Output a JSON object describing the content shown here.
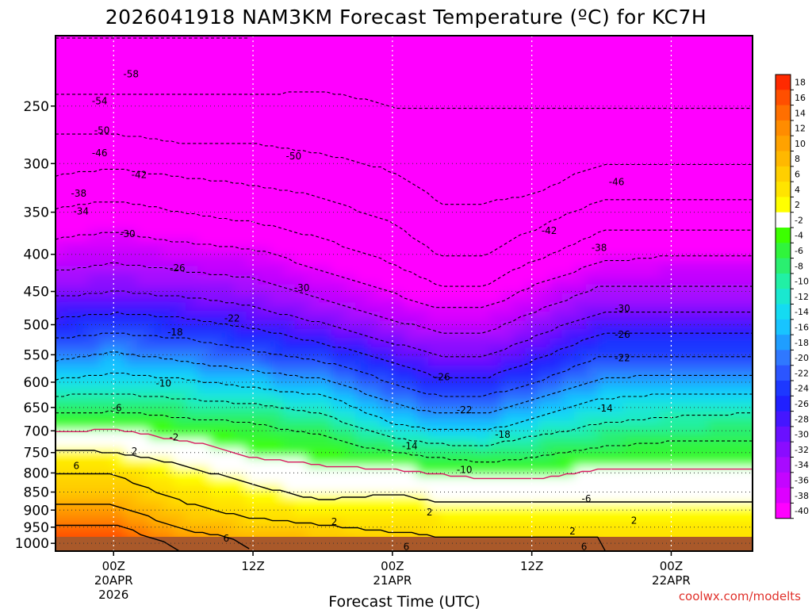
{
  "chart_data": {
    "type": "heatmap",
    "title": "2026041918 NAM3KM Forecast Temperature (ºC) for KC7H",
    "xlabel": "Forecast Time (UTC)",
    "ylabel": "",
    "credit": "coolwx.com/modelts",
    "y_axis": {
      "scale": "pressure",
      "range_hpa": [
        200,
        1025
      ],
      "ticks": [
        "250",
        "300",
        "350",
        "400",
        "450",
        "500",
        "550",
        "600",
        "650",
        "700",
        "750",
        "800",
        "850",
        "900",
        "950",
        "1000"
      ],
      "tick_values": [
        250,
        300,
        350,
        400,
        450,
        500,
        550,
        600,
        650,
        700,
        750,
        800,
        850,
        900,
        950,
        1000
      ]
    },
    "x_axis": {
      "range_hours": [
        -5,
        55
      ],
      "ticks": [
        {
          "hour": 0,
          "lines": [
            "00Z",
            "20APR",
            "2026"
          ]
        },
        {
          "hour": 12,
          "lines": [
            "12Z"
          ]
        },
        {
          "hour": 24,
          "lines": [
            "00Z",
            "21APR"
          ]
        },
        {
          "hour": 36,
          "lines": [
            "12Z"
          ]
        },
        {
          "hour": 48,
          "lines": [
            "00Z",
            "22APR"
          ]
        }
      ]
    },
    "colorbar": {
      "levels": [
        18,
        16,
        14,
        12,
        10,
        8,
        6,
        4,
        2,
        -2,
        -4,
        -6,
        -8,
        -10,
        -12,
        -14,
        -16,
        -18,
        -20,
        -22,
        -24,
        -26,
        -28,
        -30,
        -32,
        -34,
        -36,
        -38,
        -40
      ],
      "colors": [
        "#ff2a00",
        "#ff4f00",
        "#ff6f00",
        "#ff8c00",
        "#ffa200",
        "#ffb800",
        "#ffcf00",
        "#ffe400",
        "#ffff00",
        "#ffffff",
        "#3cff00",
        "#30f43c",
        "#2aef70",
        "#21f0a5",
        "#1ae8d0",
        "#14dbf2",
        "#18c4ff",
        "#1f9eff",
        "#2f78ff",
        "#2b55ff",
        "#1d38ff",
        "#2020ff",
        "#4516ff",
        "#6a10ff",
        "#8a0cff",
        "#a80aff",
        "#c405ff",
        "#dd00ff",
        "#ff00ff"
      ]
    },
    "profiles": [
      {
        "hour": -5,
        "temps": [
          -58,
          -53,
          -49,
          -45,
          -40,
          -36,
          -32,
          -27,
          -22,
          -18,
          -13,
          -8,
          -4,
          0,
          4,
          6,
          8,
          11,
          14,
          17,
          18
        ]
      },
      {
        "hour": 0,
        "temps": [
          -58,
          -53,
          -49,
          -44,
          -39,
          -35,
          -31,
          -26,
          -21,
          -16,
          -12,
          -8,
          -3,
          0,
          3,
          6,
          8,
          11,
          14,
          17,
          19
        ]
      },
      {
        "hour": 6,
        "temps": [
          -58,
          -53,
          -50,
          -45,
          -41,
          -36,
          -32,
          -27,
          -22,
          -18,
          -13,
          -9,
          -5,
          -2,
          1,
          3,
          5,
          7,
          9,
          12,
          14
        ]
      },
      {
        "hour": 12,
        "temps": [
          -58,
          -53,
          -50,
          -46,
          -42,
          -37,
          -33,
          -29,
          -24,
          -20,
          -15,
          -10,
          -6,
          -4,
          -2,
          1,
          3,
          5,
          7,
          9,
          10
        ]
      },
      {
        "hour": 18,
        "temps": [
          -57,
          -53,
          -51,
          -47,
          -44,
          -40,
          -36,
          -32,
          -27,
          -22,
          -17,
          -12,
          -8,
          -5,
          -3,
          -1,
          1,
          4,
          6,
          8,
          9
        ]
      },
      {
        "hour": 24,
        "temps": [
          -57,
          -54,
          -52,
          -49,
          -46,
          -43,
          -39,
          -35,
          -31,
          -26,
          -22,
          -18,
          -14,
          -9,
          -4,
          -1,
          2,
          4,
          5,
          7,
          8
        ]
      },
      {
        "hour": 28,
        "temps": [
          -57,
          -54,
          -53,
          -51,
          -49,
          -46,
          -42,
          -37,
          -33,
          -29,
          -25,
          -20,
          -16,
          -11,
          -6,
          -2,
          1,
          3,
          5,
          6,
          7
        ]
      },
      {
        "hour": 32,
        "temps": [
          -57,
          -54,
          -53,
          -51,
          -49,
          -46,
          -42,
          -37,
          -33,
          -29,
          -25,
          -20,
          -16,
          -11,
          -7,
          -3,
          1,
          3,
          4,
          6,
          7
        ]
      },
      {
        "hour": 36,
        "temps": [
          -57,
          -54,
          -53,
          -51,
          -47,
          -43,
          -38,
          -34,
          -30,
          -26,
          -22,
          -17,
          -13,
          -9,
          -6,
          -3,
          1,
          3,
          4,
          6,
          7
        ]
      },
      {
        "hour": 42,
        "temps": [
          -57,
          -54,
          -52,
          -48,
          -43,
          -39,
          -34,
          -30,
          -25,
          -21,
          -17,
          -13,
          -10,
          -7,
          -4,
          -1,
          1,
          3,
          4,
          6,
          6
        ]
      },
      {
        "hour": 48,
        "temps": [
          -57,
          -54,
          -52,
          -48,
          -43,
          -38,
          -34,
          -30,
          -25,
          -21,
          -16,
          -12,
          -9,
          -6,
          -4,
          -1,
          1,
          3,
          4,
          5,
          6
        ]
      },
      {
        "hour": 55,
        "temps": [
          -57,
          -54,
          -52,
          -48,
          -43,
          -38,
          -34,
          -30,
          -25,
          -21,
          -16,
          -12,
          -8,
          -6,
          -4,
          -1,
          1,
          3,
          4,
          5,
          6
        ]
      }
    ],
    "profile_levels_hpa": [
      200,
      250,
      280,
      320,
      360,
      400,
      440,
      480,
      520,
      560,
      600,
      640,
      680,
      720,
      760,
      800,
      850,
      900,
      940,
      980,
      1025
    ],
    "contour_labels": [
      "-58",
      "-54",
      "-50",
      "-46",
      "-42",
      "-38",
      "-34",
      "-30",
      "-26",
      "-22",
      "-18",
      "-14",
      "-10",
      "-6",
      "-2",
      "2",
      "6"
    ],
    "contour_label_spots": [
      {
        "text": "-58",
        "hour": 1.5,
        "p": 226
      },
      {
        "text": "-54",
        "hour": -1.2,
        "p": 246
      },
      {
        "text": "-50",
        "hour": -1.0,
        "p": 270
      },
      {
        "text": "-46",
        "hour": -1.2,
        "p": 290
      },
      {
        "text": "-50",
        "hour": 15.5,
        "p": 293
      },
      {
        "text": "-42",
        "hour": 2.2,
        "p": 311
      },
      {
        "text": "-46",
        "hour": 43.3,
        "p": 318
      },
      {
        "text": "-38",
        "hour": -3.0,
        "p": 330
      },
      {
        "text": "-34",
        "hour": -2.8,
        "p": 349
      },
      {
        "text": "-30",
        "hour": 1.2,
        "p": 375
      },
      {
        "text": "-42",
        "hour": 37.5,
        "p": 371
      },
      {
        "text": "-38",
        "hour": 41.8,
        "p": 392
      },
      {
        "text": "-26",
        "hour": 5.5,
        "p": 418
      },
      {
        "text": "-30",
        "hour": 16.2,
        "p": 445
      },
      {
        "text": "-30",
        "hour": 43.8,
        "p": 475
      },
      {
        "text": "-22",
        "hour": 10.2,
        "p": 490
      },
      {
        "text": "-18",
        "hour": 5.3,
        "p": 512
      },
      {
        "text": "-26",
        "hour": 43.8,
        "p": 516
      },
      {
        "text": "-22",
        "hour": 43.8,
        "p": 556
      },
      {
        "text": "-26",
        "hour": 28.3,
        "p": 590
      },
      {
        "text": "-10",
        "hour": 4.3,
        "p": 602
      },
      {
        "text": "-6",
        "hour": 0.3,
        "p": 651
      },
      {
        "text": "-14",
        "hour": 42.3,
        "p": 652
      },
      {
        "text": "-22",
        "hour": 30.2,
        "p": 655
      },
      {
        "text": "-18",
        "hour": 33.5,
        "p": 708
      },
      {
        "text": "-2",
        "hour": 5.2,
        "p": 715
      },
      {
        "text": "-14",
        "hour": 25.5,
        "p": 735
      },
      {
        "text": "2",
        "hour": 1.8,
        "p": 747
      },
      {
        "text": "6",
        "hour": -3.2,
        "p": 782
      },
      {
        "text": "-10",
        "hour": 30.2,
        "p": 792
      },
      {
        "text": "-6",
        "hour": 40.7,
        "p": 868
      },
      {
        "text": "2",
        "hour": 27.2,
        "p": 906
      },
      {
        "text": "2",
        "hour": 19.0,
        "p": 934
      },
      {
        "text": "2",
        "hour": 44.8,
        "p": 930
      },
      {
        "text": "6",
        "hour": 9.7,
        "p": 985
      },
      {
        "text": "2",
        "hour": 39.5,
        "p": 963
      },
      {
        "text": "6",
        "hour": 25.2,
        "p": 1011
      },
      {
        "text": "6",
        "hour": 40.5,
        "p": 1011
      }
    ]
  }
}
